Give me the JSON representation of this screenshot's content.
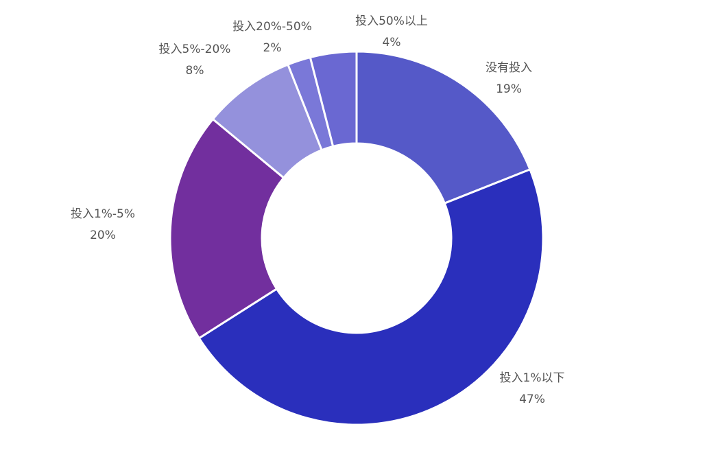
{
  "chart_data": {
    "type": "pie",
    "variant": "donut",
    "legend": "none",
    "slices": [
      {
        "label": "没有投入",
        "value": 19,
        "value_label": "19%",
        "color": "#5559c8"
      },
      {
        "label": "投入1%以下",
        "value": 47,
        "value_label": "47%",
        "color": "#2a2fbc"
      },
      {
        "label": "投入1%-5%",
        "value": 20,
        "value_label": "20%",
        "color": "#722f9e"
      },
      {
        "label": "投入5%-20%",
        "value": 8,
        "value_label": "8%",
        "color": "#9491dc"
      },
      {
        "label": "投入20%-50%",
        "value": 2,
        "value_label": "2%",
        "color": "#7a78d8"
      },
      {
        "label": "投入50%以上",
        "value": 4,
        "value_label": "4%",
        "color": "#6a68d2"
      }
    ]
  }
}
